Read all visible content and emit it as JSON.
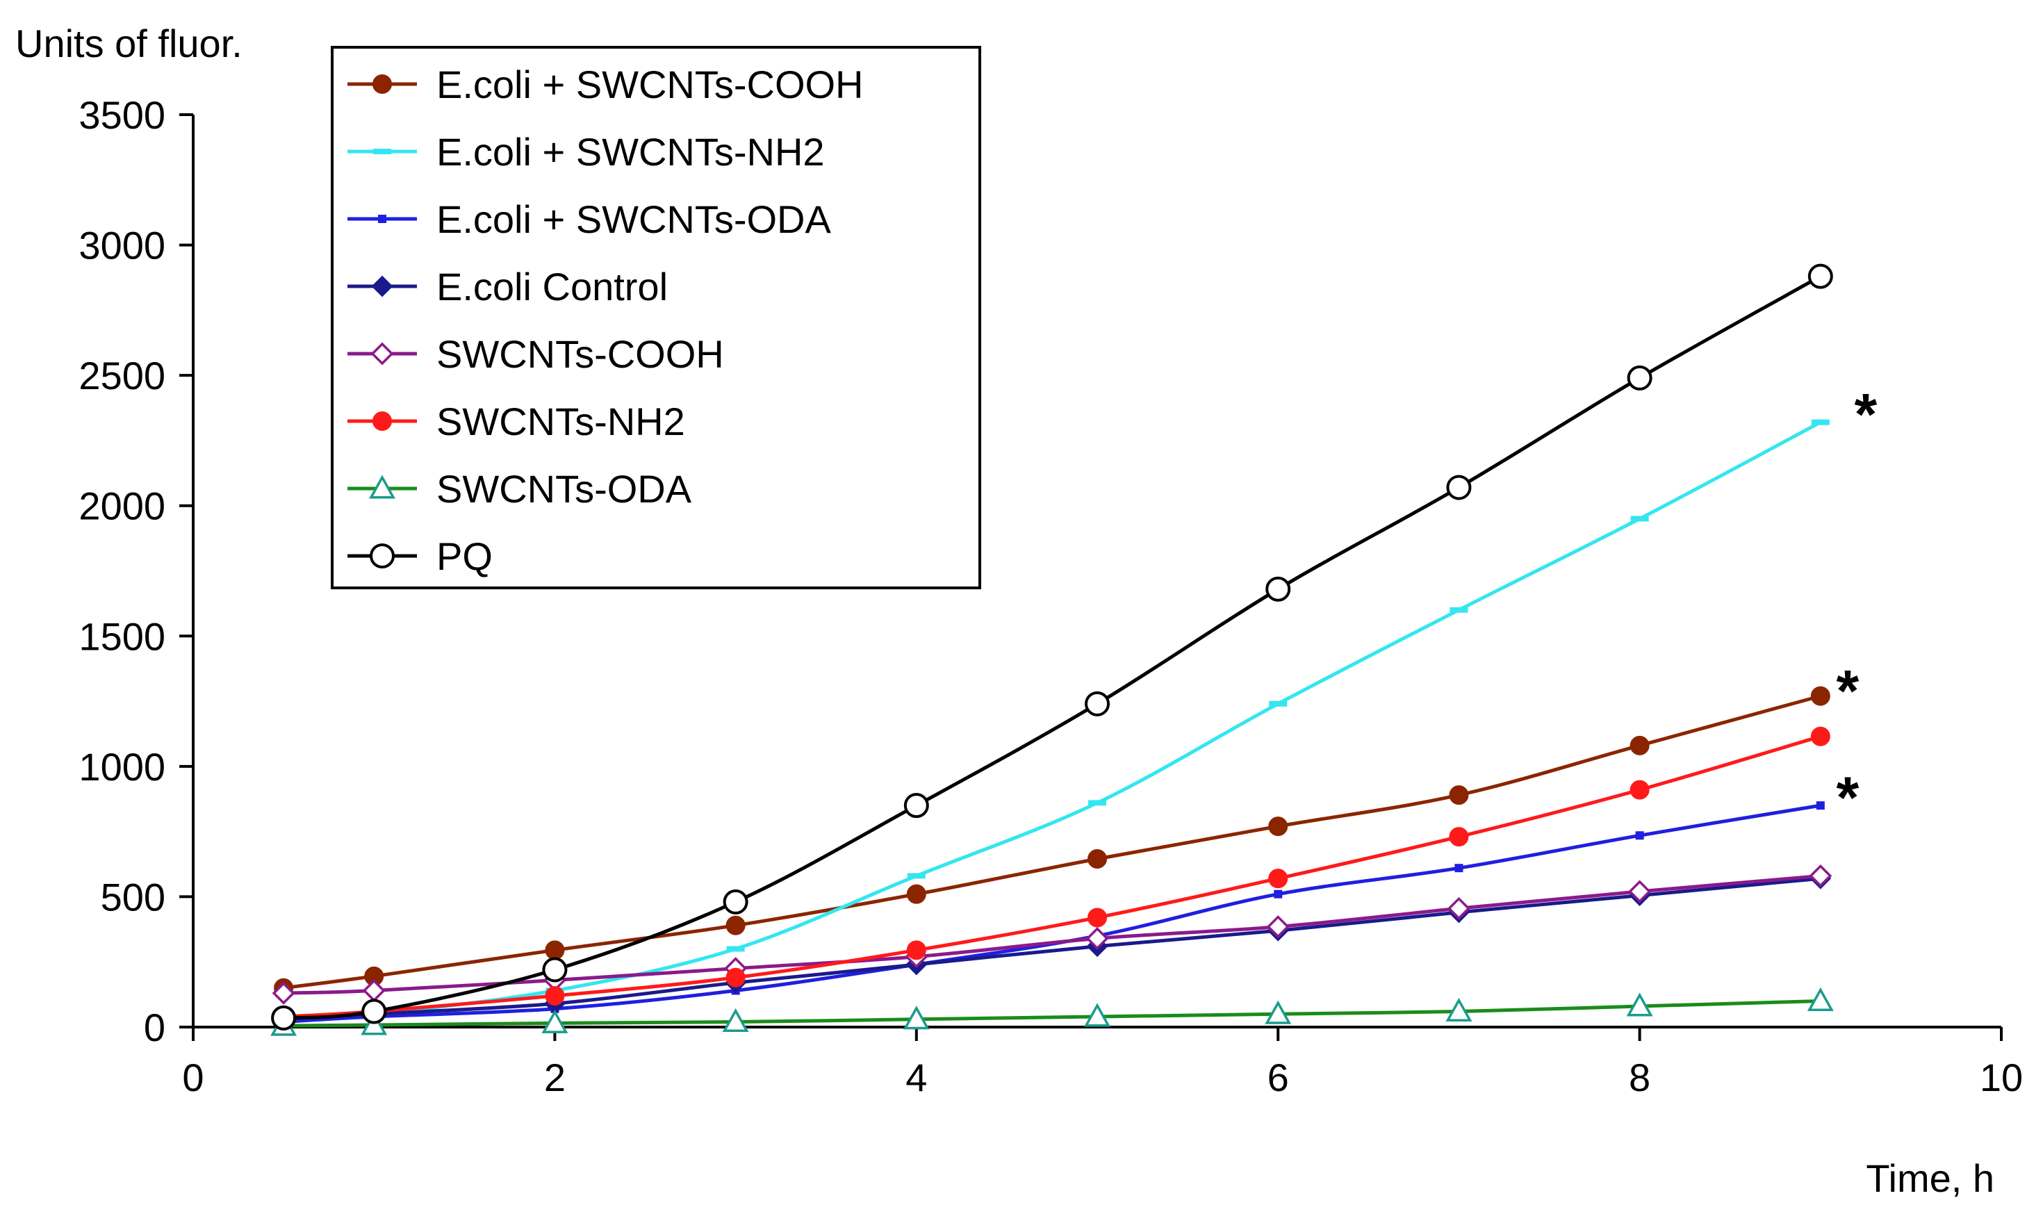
{
  "chart_data": {
    "type": "line",
    "ylabel": "Units of fluor.",
    "xlabel": "Time, h",
    "xlim": [
      0,
      10
    ],
    "ylim": [
      0,
      3500
    ],
    "xticks": [
      0,
      2,
      4,
      6,
      8,
      10
    ],
    "yticks": [
      0,
      500,
      1000,
      1500,
      2000,
      2500,
      3000,
      3500
    ],
    "grid": false,
    "legend_position": "top-left",
    "x": [
      0.5,
      1,
      2,
      3,
      4,
      5,
      6,
      7,
      8,
      9
    ],
    "series": [
      {
        "name": "E.coli + SWCNTs-COOH",
        "color": "#8b2500",
        "marker": "circle-filled",
        "values": [
          150,
          195,
          295,
          390,
          510,
          645,
          770,
          890,
          1080,
          1270
        ]
      },
      {
        "name": "E.coli + SWCNTs-NH2",
        "color": "#33e6f0",
        "marker": "dash",
        "values": [
          30,
          50,
          140,
          300,
          580,
          860,
          1240,
          1600,
          1950,
          2320
        ]
      },
      {
        "name": "E.coli + SWCNTs-ODA",
        "color": "#1f1fe0",
        "marker": "square-small",
        "values": [
          20,
          40,
          70,
          140,
          240,
          350,
          510,
          610,
          735,
          850
        ]
      },
      {
        "name": "E.coli Control",
        "color": "#1a1a8c",
        "marker": "diamond-filled",
        "values": [
          30,
          50,
          90,
          170,
          240,
          310,
          370,
          440,
          505,
          570
        ]
      },
      {
        "name": "SWCNTs-COOH",
        "color": "#8b1a8b",
        "marker": "diamond-open",
        "values": [
          130,
          140,
          180,
          225,
          270,
          340,
          385,
          455,
          520,
          580
        ]
      },
      {
        "name": "SWCNTs-NH2",
        "color": "#ff1a1a",
        "marker": "circle-filled",
        "values": [
          40,
          60,
          120,
          190,
          295,
          420,
          570,
          730,
          910,
          1115
        ]
      },
      {
        "name": "SWCNTs-ODA",
        "color": "#1a8c1a",
        "marker": "triangle-open",
        "marker_color": "#1a9c8c",
        "values": [
          5,
          8,
          15,
          20,
          30,
          40,
          50,
          60,
          80,
          100
        ]
      },
      {
        "name": "PQ",
        "color": "#000000",
        "marker": "circle-open",
        "values": [
          35,
          60,
          220,
          480,
          850,
          1240,
          1680,
          2070,
          2490,
          2880
        ]
      }
    ],
    "annotations": [
      {
        "text": "*",
        "x": 9.25,
        "y": 2380
      },
      {
        "text": "*",
        "x": 9.15,
        "y": 1320
      },
      {
        "text": "*",
        "x": 9.15,
        "y": 910
      }
    ]
  }
}
